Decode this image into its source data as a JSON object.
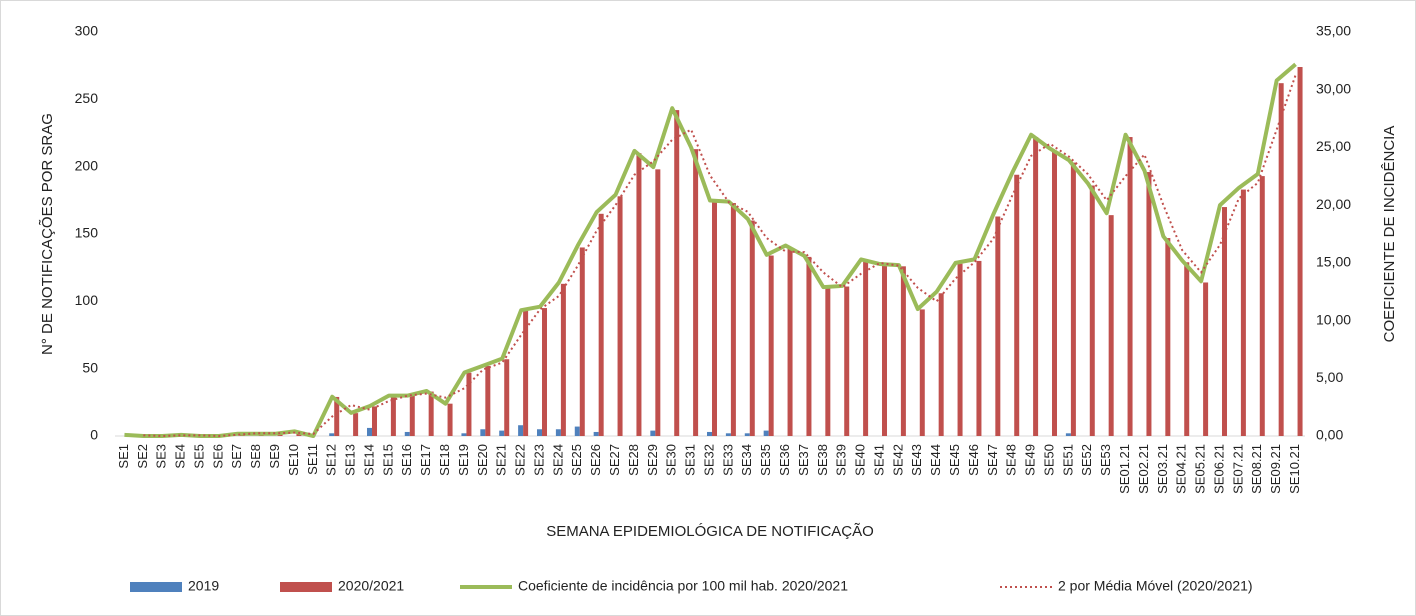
{
  "chart_data": {
    "type": "bar",
    "x_label": "SEMANA EPIDEMIOLÓGICA DE NOTIFICAÇÃO",
    "y_label": "N° DE NOTIFICAÇÕES POR SRAG",
    "y2_label": "COEFICIENTE DE INCIDÊNCIA",
    "categories": [
      "SE1",
      "SE2",
      "SE3",
      "SE4",
      "SE5",
      "SE6",
      "SE7",
      "SE8",
      "SE9",
      "SE10",
      "SE11",
      "SE12",
      "SE13",
      "SE14",
      "SE15",
      "SE16",
      "SE17",
      "SE18",
      "SE19",
      "SE20",
      "SE21",
      "SE22",
      "SE23",
      "SE24",
      "SE25",
      "SE26",
      "SE27",
      "SE28",
      "SE29",
      "SE30",
      "SE31",
      "SE32",
      "SE33",
      "SE34",
      "SE35",
      "SE36",
      "SE37",
      "SE38",
      "SE39",
      "SE40",
      "SE41",
      "SE42",
      "SE43",
      "SE44",
      "SE45",
      "SE46",
      "SE47",
      "SE48",
      "SE49",
      "SE50",
      "SE51",
      "SE52",
      "SE53",
      "SE01.21",
      "SE02.21",
      "SE03.21",
      "SE04.21",
      "SE05.21",
      "SE06.21",
      "SE07.21",
      "SE08.21",
      "SE09.21",
      "SE10.21"
    ],
    "series": [
      {
        "name": "2019",
        "type": "bar",
        "color": "#4f81bd",
        "values": [
          0,
          0,
          0,
          0,
          0,
          0,
          0,
          0,
          0,
          0,
          0,
          2,
          0,
          6,
          0,
          3,
          0,
          0,
          2,
          5,
          4,
          8,
          5,
          5,
          7,
          3,
          0,
          0,
          4,
          0,
          0,
          3,
          2,
          2,
          4,
          0,
          0,
          0,
          0,
          0,
          0,
          0,
          0,
          0,
          0,
          0,
          0,
          0,
          0,
          0,
          2,
          0,
          0,
          null,
          null,
          null,
          null,
          null,
          null,
          null,
          null,
          null,
          null
        ]
      },
      {
        "name": "2020/2021",
        "type": "bar",
        "color": "#c0504d",
        "values": [
          1,
          0,
          0,
          1,
          0,
          0,
          2,
          2,
          2,
          3,
          0,
          29,
          17,
          22,
          30,
          30,
          33,
          24,
          47,
          52,
          57,
          93,
          95,
          113,
          140,
          165,
          178,
          210,
          198,
          242,
          213,
          174,
          173,
          160,
          134,
          140,
          133,
          110,
          111,
          130,
          127,
          126,
          94,
          106,
          128,
          130,
          163,
          194,
          222,
          212,
          203,
          186,
          164,
          222,
          196,
          147,
          129,
          114,
          170,
          183,
          193,
          262,
          274
        ]
      },
      {
        "name": "Coeficiente de incidência por 100 mil hab. 2020/2021",
        "type": "line",
        "axis": "y2",
        "color": "#9bbb59",
        "style": "solid",
        "values": [
          0.1,
          0,
          0,
          0.1,
          0,
          0,
          0.2,
          0.2,
          0.2,
          0.4,
          0,
          3.4,
          2.0,
          2.6,
          3.5,
          3.5,
          3.9,
          2.8,
          5.5,
          6.1,
          6.7,
          10.9,
          11.2,
          13.3,
          16.5,
          19.4,
          20.9,
          24.7,
          23.3,
          28.4,
          25.0,
          20.4,
          20.3,
          18.8,
          15.7,
          16.5,
          15.6,
          12.9,
          13.0,
          15.3,
          14.9,
          14.8,
          11.0,
          12.5,
          15.0,
          15.3,
          19.2,
          22.8,
          26.1,
          24.9,
          23.9,
          21.9,
          19.3,
          26.1,
          23.0,
          17.3,
          15.2,
          13.4,
          20.0,
          21.5,
          22.7,
          30.8,
          32.2
        ]
      },
      {
        "name": "2 por Média Móvel (2020/2021)",
        "type": "line",
        "color": "#c0504d",
        "style": "dotted",
        "values": [
          null,
          0.5,
          0,
          0.5,
          0.5,
          0,
          1,
          2,
          2,
          2.5,
          1.5,
          14.5,
          23,
          19.5,
          26,
          30,
          31.5,
          28.5,
          35.5,
          49.5,
          54.5,
          75,
          94,
          104,
          126.5,
          152.5,
          171.5,
          194,
          204,
          220,
          227.5,
          193.5,
          173.5,
          166.5,
          147,
          137,
          136.5,
          121.5,
          110.5,
          120.5,
          128.5,
          126.5,
          110,
          100,
          117,
          129,
          146.5,
          178.5,
          208,
          217,
          207.5,
          194.5,
          175,
          193,
          209,
          171.5,
          138,
          121.5,
          142,
          176.5,
          188,
          227.5,
          268
        ]
      }
    ],
    "ylim": [
      0,
      300
    ],
    "yticks": [
      0,
      50,
      100,
      150,
      200,
      250,
      300
    ],
    "y2lim": [
      0,
      35
    ],
    "y2ticks": [
      {
        "value": 0,
        "label": "0,00"
      },
      {
        "value": 5,
        "label": "5,00"
      },
      {
        "value": 10,
        "label": "10,00"
      },
      {
        "value": 15,
        "label": "15,00"
      },
      {
        "value": 20,
        "label": "20,00"
      },
      {
        "value": 25,
        "label": "25,00"
      },
      {
        "value": 30,
        "label": "30,00"
      },
      {
        "value": 35,
        "label": "35,00"
      }
    ],
    "grid": false,
    "legend": "bottom"
  }
}
